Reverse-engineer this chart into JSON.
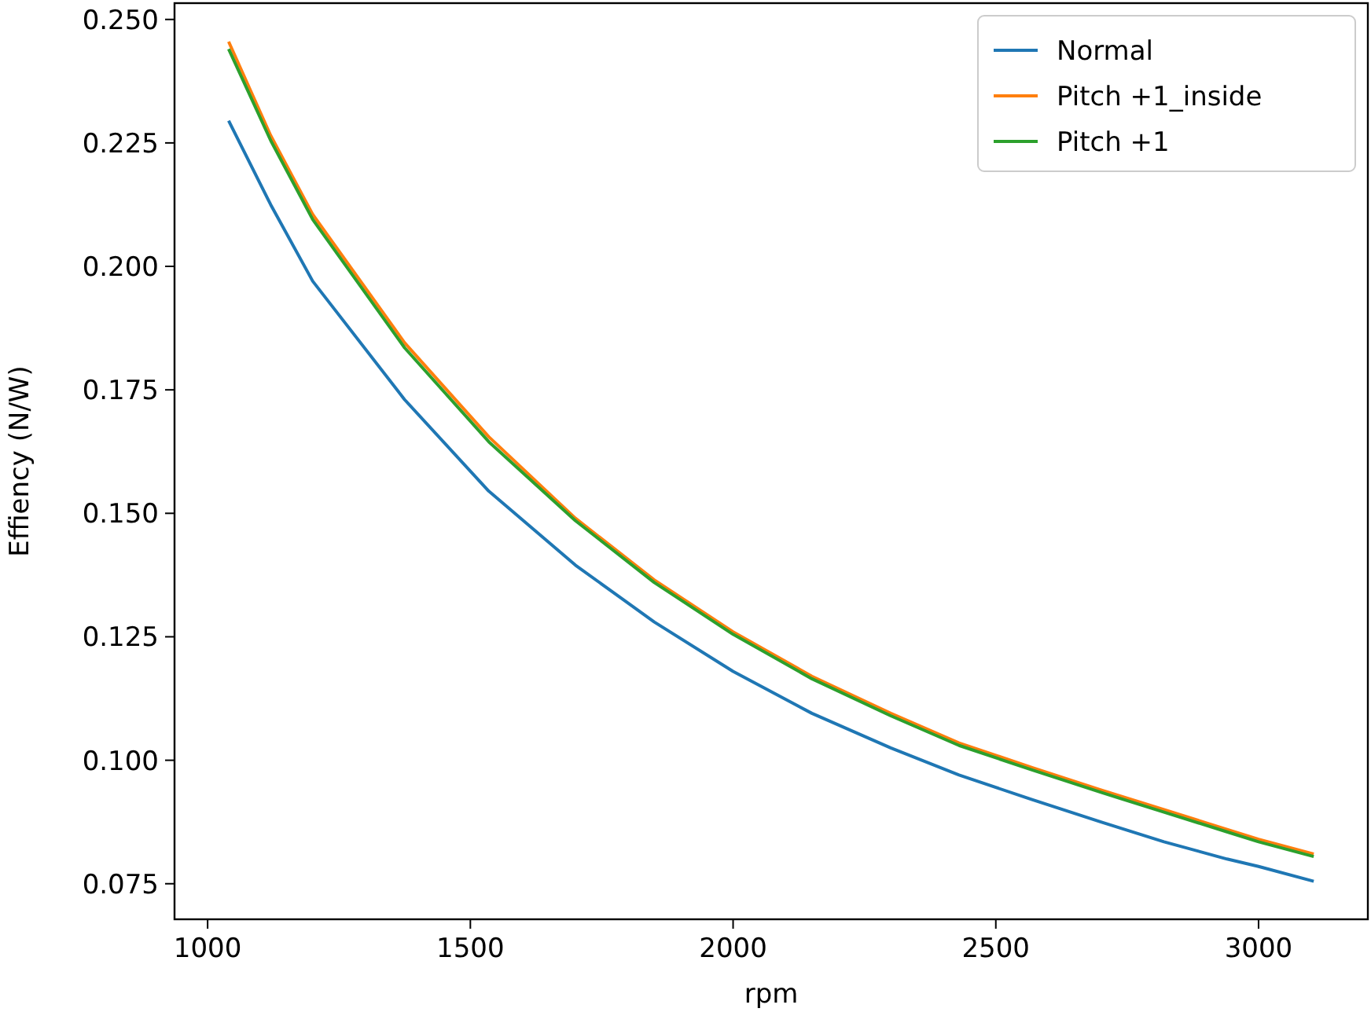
{
  "chart_data": {
    "type": "line",
    "xlabel": "rpm",
    "ylabel": "Effiency (N/W)",
    "x": [
      1040,
      1120,
      1200,
      1375,
      1535,
      1700,
      1850,
      2000,
      2150,
      2300,
      2430,
      2570,
      2700,
      2820,
      2940,
      3000,
      3105
    ],
    "series": [
      {
        "name": "Normal",
        "color": "#1f77b4",
        "values": [
          0.2295,
          0.2125,
          0.197,
          0.173,
          0.1545,
          0.1395,
          0.128,
          0.118,
          0.1095,
          0.1025,
          0.097,
          0.092,
          0.0875,
          0.0835,
          0.08,
          0.0785,
          0.0755
        ]
      },
      {
        "name": "Pitch +1_inside",
        "color": "#ff7f0e",
        "values": [
          0.2455,
          0.2265,
          0.2105,
          0.1845,
          0.1655,
          0.149,
          0.1365,
          0.126,
          0.117,
          0.1095,
          0.1035,
          0.0985,
          0.094,
          0.09,
          0.086,
          0.084,
          0.081
        ]
      },
      {
        "name": "Pitch +1",
        "color": "#2ca02c",
        "values": [
          0.244,
          0.2255,
          0.2095,
          0.1835,
          0.1645,
          0.1485,
          0.136,
          0.1255,
          0.1165,
          0.109,
          0.103,
          0.098,
          0.0935,
          0.0895,
          0.0855,
          0.0835,
          0.0805
        ]
      }
    ],
    "xlim": [
      937,
      3208
    ],
    "ylim": [
      0.0678,
      0.2533
    ],
    "xticks": [
      1000,
      1500,
      2000,
      2500,
      3000
    ],
    "yticks": [
      {
        "value": 0.075,
        "label": "0.075"
      },
      {
        "value": 0.1,
        "label": "0.100"
      },
      {
        "value": 0.125,
        "label": "0.125"
      },
      {
        "value": 0.15,
        "label": "0.150"
      },
      {
        "value": 0.175,
        "label": "0.175"
      },
      {
        "value": 0.2,
        "label": "0.200"
      },
      {
        "value": 0.225,
        "label": "0.225"
      },
      {
        "value": 0.25,
        "label": "0.250"
      }
    ],
    "grid": false,
    "legend": "top right",
    "marker": "none",
    "line_style": "solid"
  }
}
